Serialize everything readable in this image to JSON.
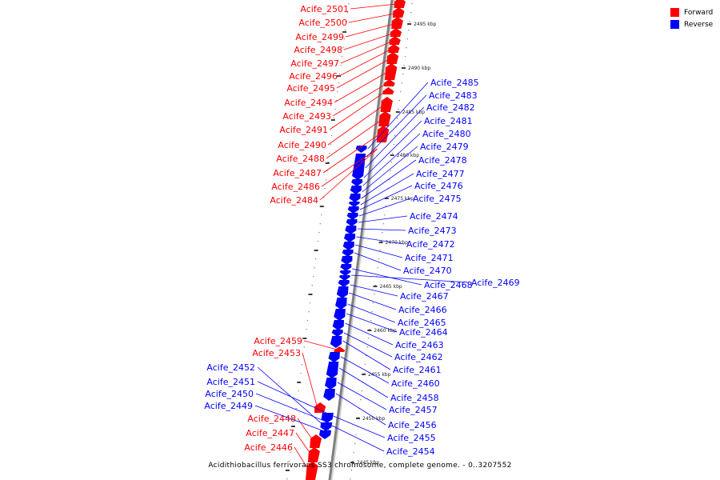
{
  "legend": {
    "forward_label": "Forward",
    "reverse_label": "Reverse",
    "forward_color": "#ff0000",
    "reverse_color": "#0000ff"
  },
  "caption": "Acidithiobacillus ferrivorans SS3 chromosome, complete genome. - 0..3207552",
  "axis": {
    "color": "#808080",
    "ticks": [
      "2495 kbp",
      "2490 kbp",
      "2485 kbp",
      "2480 kbp",
      "2475 kbp",
      "2470 kbp",
      "2465 kbp",
      "2460 kbp",
      "2455 kbp",
      "2450 kbp",
      "2445 kbp"
    ]
  },
  "forward_genes": [
    "Acife_2501",
    "Acife_2500",
    "Acife_2499",
    "Acife_2498",
    "Acife_2497",
    "Acife_2496",
    "Acife_2495",
    "Acife_2494",
    "Acife_2493",
    "Acife_2491",
    "Acife_2490",
    "Acife_2488",
    "Acife_2487",
    "Acife_2486",
    "Acife_2484",
    "Acife_2459",
    "Acife_2453",
    "Acife_2448",
    "Acife_2447",
    "Acife_2446"
  ],
  "reverse_genes": [
    "Acife_2485",
    "Acife_2483",
    "Acife_2482",
    "Acife_2481",
    "Acife_2480",
    "Acife_2479",
    "Acife_2478",
    "Acife_2477",
    "Acife_2476",
    "Acife_2475",
    "Acife_2474",
    "Acife_2473",
    "Acife_2472",
    "Acife_2471",
    "Acife_2470",
    "Acife_2468",
    "Acife_2469",
    "Acife_2467",
    "Acife_2466",
    "Acife_2465",
    "Acife_2464",
    "Acife_2463",
    "Acife_2462",
    "Acife_2461",
    "Acife_2460",
    "Acife_2458",
    "Acife_2457",
    "Acife_2456",
    "Acife_2455",
    "Acife_2454",
    "Acife_2452",
    "Acife_2451",
    "Acife_2450",
    "Acife_2449"
  ]
}
